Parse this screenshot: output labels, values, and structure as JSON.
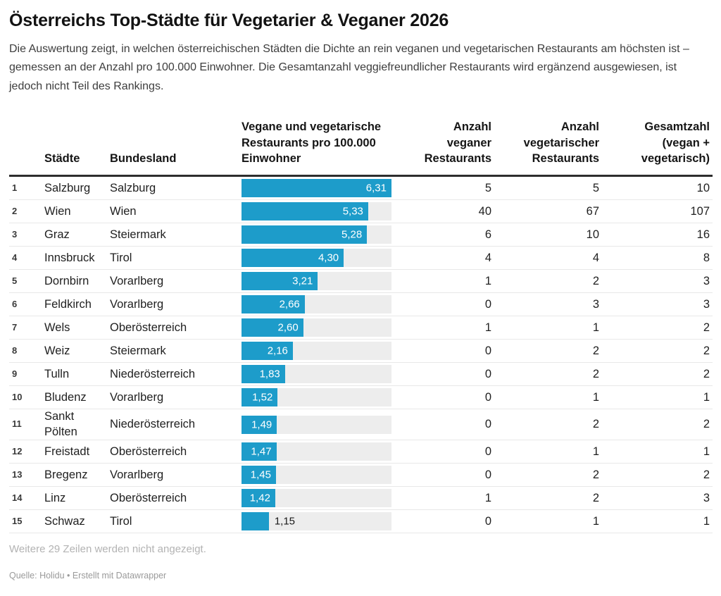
{
  "header": {
    "title": "Österreichs Top-Städte für Vegetarier & Veganer 2026",
    "description": "Die Auswertung zeigt, in welchen österreichischen Städten die Dichte an rein veganen und vegetarischen Restaurants am höchsten ist – gemessen an der Anzahl pro 100.000 Einwohner. Die Gesamtanzahl veggiefreundlicher Restaurants wird ergänzend ausgewiesen, ist jedoch nicht Teil des Rankings."
  },
  "table": {
    "col_headers": {
      "city": "Städte",
      "state": "Bundesland",
      "bar": "Vegane und vegetarische Restaurants pro 100.000 Einwohner",
      "vegan": "Anzahl veganer Restaurants",
      "vegetarian": "Anzahl vegetarischer Restaurants",
      "total": "Gesamtzahl (vegan + vegetarisch)"
    },
    "bar_scale_max": 6.31,
    "rows": [
      {
        "rank": "1",
        "city": "Salzburg",
        "state": "Salzburg",
        "per_100k": 6.31,
        "per_100k_label": "6,31",
        "vegan": "5",
        "vegetarian": "5",
        "total": "10"
      },
      {
        "rank": "2",
        "city": "Wien",
        "state": "Wien",
        "per_100k": 5.33,
        "per_100k_label": "5,33",
        "vegan": "40",
        "vegetarian": "67",
        "total": "107"
      },
      {
        "rank": "3",
        "city": "Graz",
        "state": "Steiermark",
        "per_100k": 5.28,
        "per_100k_label": "5,28",
        "vegan": "6",
        "vegetarian": "10",
        "total": "16"
      },
      {
        "rank": "4",
        "city": "Innsbruck",
        "state": "Tirol",
        "per_100k": 4.3,
        "per_100k_label": "4,30",
        "vegan": "4",
        "vegetarian": "4",
        "total": "8"
      },
      {
        "rank": "5",
        "city": "Dornbirn",
        "state": "Vorarlberg",
        "per_100k": 3.21,
        "per_100k_label": "3,21",
        "vegan": "1",
        "vegetarian": "2",
        "total": "3"
      },
      {
        "rank": "6",
        "city": "Feldkirch",
        "state": "Vorarlberg",
        "per_100k": 2.66,
        "per_100k_label": "2,66",
        "vegan": "0",
        "vegetarian": "3",
        "total": "3"
      },
      {
        "rank": "7",
        "city": "Wels",
        "state": "Oberösterreich",
        "per_100k": 2.6,
        "per_100k_label": "2,60",
        "vegan": "1",
        "vegetarian": "1",
        "total": "2"
      },
      {
        "rank": "8",
        "city": "Weiz",
        "state": "Steiermark",
        "per_100k": 2.16,
        "per_100k_label": "2,16",
        "vegan": "0",
        "vegetarian": "2",
        "total": "2"
      },
      {
        "rank": "9",
        "city": "Tulln",
        "state": "Niederösterreich",
        "per_100k": 1.83,
        "per_100k_label": "1,83",
        "vegan": "0",
        "vegetarian": "2",
        "total": "2"
      },
      {
        "rank": "10",
        "city": "Bludenz",
        "state": "Vorarlberg",
        "per_100k": 1.52,
        "per_100k_label": "1,52",
        "vegan": "0",
        "vegetarian": "1",
        "total": "1"
      },
      {
        "rank": "11",
        "city": "Sankt Pölten",
        "state": "Niederösterreich",
        "per_100k": 1.49,
        "per_100k_label": "1,49",
        "vegan": "0",
        "vegetarian": "2",
        "total": "2"
      },
      {
        "rank": "12",
        "city": "Freistadt",
        "state": "Oberösterreich",
        "per_100k": 1.47,
        "per_100k_label": "1,47",
        "vegan": "0",
        "vegetarian": "1",
        "total": "1"
      },
      {
        "rank": "13",
        "city": "Bregenz",
        "state": "Vorarlberg",
        "per_100k": 1.45,
        "per_100k_label": "1,45",
        "vegan": "0",
        "vegetarian": "2",
        "total": "2"
      },
      {
        "rank": "14",
        "city": "Linz",
        "state": "Oberösterreich",
        "per_100k": 1.42,
        "per_100k_label": "1,42",
        "vegan": "1",
        "vegetarian": "2",
        "total": "3"
      },
      {
        "rank": "15",
        "city": "Schwaz",
        "state": "Tirol",
        "per_100k": 1.15,
        "per_100k_label": "1,15",
        "vegan": "0",
        "vegetarian": "1",
        "total": "1"
      }
    ]
  },
  "footer": {
    "truncation_note": "Weitere 29 Zeilen werden nicht angezeigt.",
    "source": "Quelle: Holidu • Erstellt mit Datawrapper"
  },
  "colors": {
    "bar": "#1d9cca",
    "bar_track": "#ededed",
    "header_rule": "#2d2d2d",
    "row_divider": "#e8e8e8",
    "bar_label_inside": "#ffffff",
    "bar_label_outside": "#1a1a1a",
    "note_text": "#b3b3b3",
    "source_text": "#9a9a9a"
  },
  "chart_data": {
    "type": "bar",
    "title": "Österreichs Top-Städte für Vegetarier & Veganer 2026",
    "subtitle": "Die Auswertung zeigt, in welchen österreichischen Städten die Dichte an rein veganen und vegetarischen Restaurants am höchsten ist – gemessen an der Anzahl pro 100.000 Einwohner. Die Gesamtanzahl veggiefreundlicher Restaurants wird ergänzend ausgewiesen, ist jedoch nicht Teil des Rankings.",
    "categories": [
      "Salzburg",
      "Wien",
      "Graz",
      "Innsbruck",
      "Dornbirn",
      "Feldkirch",
      "Wels",
      "Weiz",
      "Tulln",
      "Bludenz",
      "Sankt Pölten",
      "Freistadt",
      "Bregenz",
      "Linz",
      "Schwaz"
    ],
    "bundesland": [
      "Salzburg",
      "Wien",
      "Steiermark",
      "Tirol",
      "Vorarlberg",
      "Vorarlberg",
      "Oberösterreich",
      "Steiermark",
      "Niederösterreich",
      "Vorarlberg",
      "Niederösterreich",
      "Oberösterreich",
      "Vorarlberg",
      "Oberösterreich",
      "Tirol"
    ],
    "series": [
      {
        "name": "Vegane und vegetarische Restaurants pro 100.000 Einwohner",
        "values": [
          6.31,
          5.33,
          5.28,
          4.3,
          3.21,
          2.66,
          2.6,
          2.16,
          1.83,
          1.52,
          1.49,
          1.47,
          1.45,
          1.42,
          1.15
        ]
      },
      {
        "name": "Anzahl veganer Restaurants",
        "values": [
          5,
          40,
          6,
          4,
          1,
          0,
          1,
          0,
          0,
          0,
          0,
          0,
          0,
          1,
          0
        ]
      },
      {
        "name": "Anzahl vegetarischer Restaurants",
        "values": [
          5,
          67,
          10,
          4,
          2,
          3,
          1,
          2,
          2,
          1,
          2,
          1,
          2,
          2,
          1
        ]
      },
      {
        "name": "Gesamtzahl (vegan + vegetarisch)",
        "values": [
          10,
          107,
          16,
          8,
          3,
          3,
          2,
          2,
          2,
          1,
          2,
          1,
          2,
          3,
          1
        ]
      }
    ],
    "xlim": [
      0,
      6.31
    ],
    "grid": false,
    "legend_position": "none",
    "bar_orientation": "horizontal",
    "source": "Quelle: Holidu"
  }
}
